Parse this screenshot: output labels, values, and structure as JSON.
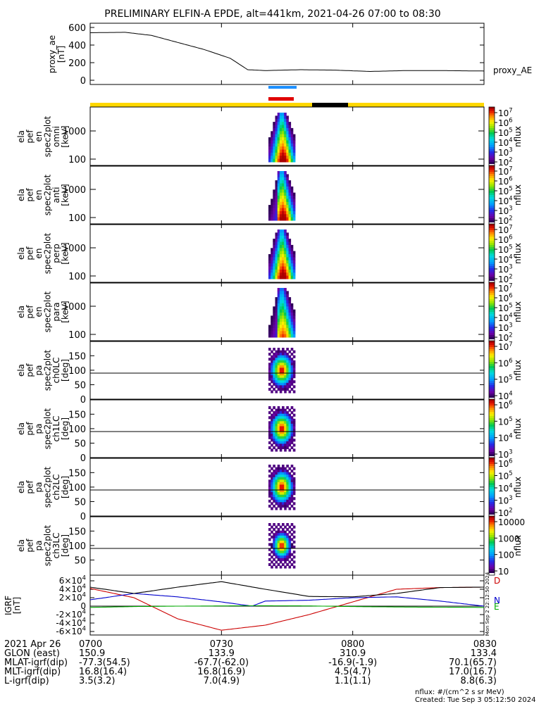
{
  "title": "PRELIMINARY ELFIN-A EPDE, alt=441km, 2021-04-26 07:00 to 08:30",
  "footer": {
    "units": "nflux: #/(cm^2 s sr MeV)",
    "created": "Created: Tue Sep  3 05:12:50 2024"
  },
  "side_stamp": "Mon Sep  2 22:12:50 2024",
  "chart_data": {
    "type": "heatmap",
    "title": "PRELIMINARY ELFIN-A EPDE, alt=441km, 2021-04-26 07:00 to 08:30",
    "time_range": [
      "07:00",
      "08:30"
    ],
    "panels": [
      {
        "kind": "line",
        "ylabel": [
          "proxy_ae",
          "[nT]"
        ],
        "yticks": [
          "600",
          "400",
          "200",
          "0"
        ],
        "series_label": "proxy_AE",
        "x_min": [
          0,
          8,
          14,
          20,
          26,
          32,
          36,
          40,
          44,
          48,
          56,
          64,
          72,
          80,
          90
        ],
        "values": [
          540,
          545,
          510,
          430,
          350,
          250,
          120,
          110,
          115,
          120,
          115,
          100,
          110,
          110,
          105
        ]
      },
      {
        "kind": "spec",
        "ylabel": [
          "ela",
          "pef",
          "en",
          "spec2plot",
          "omni",
          "[keV]"
        ],
        "yticks": [
          "1000",
          "100"
        ],
        "colorbar": [
          "10^7",
          "10^6",
          "10^5",
          "10^4",
          "10^3",
          "10^2"
        ],
        "zlabel": "nflux"
      },
      {
        "kind": "spec",
        "ylabel": [
          "ela",
          "pef",
          "en",
          "spec2plot",
          "anti",
          "[keV]"
        ],
        "yticks": [
          "1000",
          "100"
        ],
        "colorbar": [
          "10^7",
          "10^6",
          "10^5",
          "10^4",
          "10^3",
          "10^2"
        ],
        "zlabel": "nflux"
      },
      {
        "kind": "spec",
        "ylabel": [
          "ela",
          "pef",
          "en",
          "spec2plot",
          "perp",
          "[keV]"
        ],
        "yticks": [
          "1000",
          "100"
        ],
        "colorbar": [
          "10^7",
          "10^6",
          "10^5",
          "10^4",
          "10^3",
          "10^2"
        ],
        "zlabel": "nflux"
      },
      {
        "kind": "spec",
        "ylabel": [
          "ela",
          "pef",
          "en",
          "spec2plot",
          "para",
          "[keV]"
        ],
        "yticks": [
          "1000",
          "100"
        ],
        "colorbar": [
          "10^7",
          "10^6",
          "10^5",
          "10^4",
          "10^3",
          "10^2"
        ],
        "zlabel": "nflux"
      },
      {
        "kind": "pa",
        "ylabel": [
          "ela",
          "pef",
          "pa",
          "spec2plot",
          "ch0LC",
          "[deg]"
        ],
        "yticks": [
          "150",
          "100",
          "50",
          "0"
        ],
        "colorbar": [
          "10^7",
          "10^6",
          "10^5",
          "10^4"
        ],
        "zlabel": "nflux"
      },
      {
        "kind": "pa",
        "ylabel": [
          "ela",
          "pef",
          "pa",
          "spec2plot",
          "ch1LC",
          "[deg]"
        ],
        "yticks": [
          "150",
          "100",
          "50",
          "0"
        ],
        "colorbar": [
          "10^6",
          "10^5",
          "10^4",
          "10^3"
        ],
        "zlabel": "nflux"
      },
      {
        "kind": "pa",
        "ylabel": [
          "ela",
          "pef",
          "pa",
          "spec2plot",
          "ch2LC",
          "[deg]"
        ],
        "yticks": [
          "150",
          "100",
          "50",
          "0"
        ],
        "colorbar": [
          "10^6",
          "10^5",
          "10^4",
          "10^3",
          "10^2"
        ],
        "zlabel": "nflux"
      },
      {
        "kind": "pa",
        "ylabel": [
          "ela",
          "pef",
          "pa",
          "spec2plot",
          "ch3LC",
          "[deg]"
        ],
        "yticks": [
          "150",
          "100",
          "50"
        ],
        "colorbar": [
          "10000",
          "1000",
          "100",
          "10"
        ],
        "zlabel": "nflux"
      },
      {
        "kind": "field",
        "ylabel": [
          "IGRF",
          "[nT]"
        ],
        "yticks": [
          "6×10^4",
          "4×10^4",
          "2×10^4",
          "0",
          "-2×10^4",
          "-4×10^4",
          "-6×10^4"
        ],
        "series": [
          {
            "name": "D",
            "color": "#cc0000",
            "x_min": [
              0,
              10,
              20,
              30,
              40,
              50,
              60,
              70,
              80,
              90
            ],
            "values": [
              42000,
              20000,
              -30000,
              -57000,
              -45000,
              -20000,
              10000,
              40000,
              44000,
              45000
            ]
          },
          {
            "name": "N",
            "color": "#0000cc",
            "x_min": [
              0,
              10,
              20,
              30,
              37,
              40,
              50,
              60,
              70,
              80,
              90
            ],
            "values": [
              15000,
              30000,
              22000,
              10000,
              0,
              12000,
              14000,
              20000,
              22000,
              12000,
              0
            ]
          },
          {
            "name": "E",
            "color": "#00aa00",
            "x_min": [
              0,
              10,
              20,
              30,
              40,
              50,
              60,
              70,
              80,
              90
            ],
            "values": [
              -3000,
              -1000,
              0,
              500,
              1000,
              500,
              -1000,
              -2000,
              -2500,
              -3000
            ]
          },
          {
            "name": "",
            "color": "#000000",
            "x_min": [
              0,
              10,
              20,
              30,
              40,
              50,
              60,
              70,
              80,
              90
            ],
            "values": [
              45000,
              30000,
              45000,
              58000,
              40000,
              23000,
              22000,
              30000,
              44000,
              45000
            ]
          }
        ]
      }
    ],
    "x_axis_table": {
      "rows": [
        {
          "label": "2021 Apr 26",
          "values": [
            "0700",
            "0730",
            "0800",
            "0830"
          ]
        },
        {
          "label": "GLON (east)",
          "values": [
            "150.9",
            "133.9",
            "310.9",
            "133.4"
          ]
        },
        {
          "label": "MLAT-igrf(dip)",
          "values": [
            "-77.3(54.5)",
            "-67.7(-62.0)",
            "-16.9(-1.9)",
            "70.1(65.7)"
          ]
        },
        {
          "label": "MLT-igrf(dip)",
          "values": [
            "16.8(16.4)",
            "16.8(16.9)",
            "4.5(4.7)",
            "17.0(16.7)"
          ]
        },
        {
          "label": "L-igrf(dip)",
          "values": [
            "3.5(3.2)",
            "7.0(4.9)",
            "1.1(1.1)",
            "8.8(6.3)"
          ]
        }
      ]
    }
  }
}
